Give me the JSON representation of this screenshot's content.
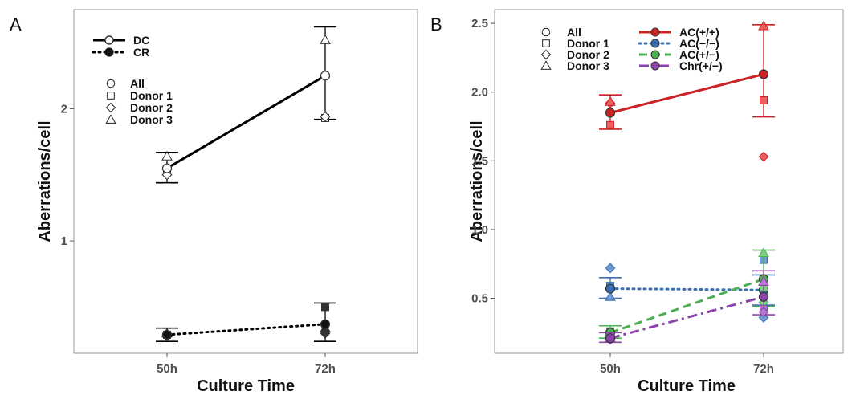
{
  "chart_data": [
    {
      "type": "line",
      "panel_label": "A",
      "xlabel": "Culture Time",
      "ylabel": "Aberrations/cell",
      "categories": [
        "50h",
        "72h"
      ],
      "y_ticks": [
        "1",
        "2"
      ],
      "y_tick_values": [
        1,
        2
      ],
      "ylim": [
        0.15,
        2.75
      ],
      "grid": false,
      "line_legend": [
        {
          "label": "DC",
          "style": "solid",
          "marker": "open-circle"
        },
        {
          "label": "CR",
          "style": "dotted",
          "marker": "filled-circle"
        }
      ],
      "shape_legend": [
        {
          "label": "All",
          "shape": "circle"
        },
        {
          "label": "Donor 1",
          "shape": "square"
        },
        {
          "label": "Donor 2",
          "shape": "diamond"
        },
        {
          "label": "Donor 3",
          "shape": "triangle"
        }
      ],
      "series": [
        {
          "name": "DC",
          "color": "#000000",
          "style": "solid",
          "marker_fill": "#ffffff",
          "line_width": 3,
          "values": [
            1.55,
            2.25
          ],
          "err_low": [
            1.44,
            1.92
          ],
          "err_high": [
            1.67,
            2.62
          ],
          "donors": {
            "Donor 1": [
              1.52,
              1.93
            ],
            "Donor 2": [
              1.5,
              1.94
            ],
            "Donor 3": [
              1.64,
              2.52
            ]
          }
        },
        {
          "name": "CR",
          "color": "#000000",
          "style": "dotted",
          "marker_fill": "#111111",
          "line_width": 3,
          "values": [
            0.29,
            0.37
          ],
          "err_low": [
            0.24,
            0.24
          ],
          "err_high": [
            0.34,
            0.53
          ],
          "donors": {
            "Donor 1": [
              0.29,
              0.5
            ],
            "Donor 2": [
              0.28,
              0.3
            ],
            "Donor 3": [
              0.3,
              0.34
            ]
          }
        }
      ]
    },
    {
      "type": "line",
      "panel_label": "B",
      "xlabel": "Culture Time",
      "ylabel": "Aberrations/cell",
      "categories": [
        "50h",
        "72h"
      ],
      "y_ticks": [
        "0.5",
        "1.0",
        "1.5",
        "2.0",
        "2.5"
      ],
      "y_tick_values": [
        0.5,
        1.0,
        1.5,
        2.0,
        2.5
      ],
      "ylim": [
        0.1,
        2.6
      ],
      "grid": false,
      "shape_legend": [
        {
          "label": "All",
          "shape": "circle"
        },
        {
          "label": "Donor 1",
          "shape": "square"
        },
        {
          "label": "Donor 2",
          "shape": "diamond"
        },
        {
          "label": "Donor 3",
          "shape": "triangle"
        }
      ],
      "line_legend": [
        {
          "label": "AC(+/+)",
          "color": "#cc2222",
          "style": "solid"
        },
        {
          "label": "AC(−/−)",
          "color": "#3a6fb0",
          "style": "dotted"
        },
        {
          "label": "AC(+/−)",
          "color": "#4caf50",
          "style": "dashed"
        },
        {
          "label": "Chr(+/−)",
          "color": "#8e44ad",
          "style": "dashdot"
        }
      ],
      "series": [
        {
          "name": "AC(+/+)",
          "color": "#cc2222",
          "light": "#e86060",
          "style": "solid",
          "values": [
            1.85,
            2.13
          ],
          "err_low": [
            1.73,
            1.82
          ],
          "err_high": [
            1.98,
            2.49
          ],
          "donors": {
            "Donor 1": [
              1.76,
              1.94
            ],
            "Donor 2": [
              1.92,
              1.53
            ],
            "Donor 3": [
              1.93,
              2.48
            ]
          }
        },
        {
          "name": "AC(−/−)",
          "color": "#3a6fb0",
          "light": "#6f9bd0",
          "style": "dotted",
          "values": [
            0.57,
            0.56
          ],
          "err_low": [
            0.5,
            0.45
          ],
          "err_high": [
            0.65,
            0.67
          ],
          "donors": {
            "Donor 1": [
              0.59,
              0.78
            ],
            "Donor 2": [
              0.72,
              0.36
            ],
            "Donor 3": [
              0.51,
              0.62
            ]
          }
        },
        {
          "name": "AC(+/−)",
          "color": "#4caf50",
          "light": "#7ccf7f",
          "style": "dashed",
          "values": [
            0.25,
            0.64
          ],
          "err_low": [
            0.21,
            0.44
          ],
          "err_high": [
            0.3,
            0.85
          ],
          "donors": {
            "Donor 1": [
              0.26,
              0.58
            ],
            "Donor 2": [
              0.23,
              0.47
            ],
            "Donor 3": [
              0.24,
              0.83
            ]
          }
        },
        {
          "name": "Chr(+/−)",
          "color": "#8e44ad",
          "light": "#b278cc",
          "style": "dashdot",
          "values": [
            0.21,
            0.51
          ],
          "err_low": [
            0.18,
            0.38
          ],
          "err_high": [
            0.25,
            0.7
          ],
          "donors": {
            "Donor 1": [
              0.22,
              0.42
            ],
            "Donor 2": [
              0.2,
              0.4
            ],
            "Donor 3": [
              0.21,
              0.62
            ]
          }
        }
      ]
    }
  ]
}
